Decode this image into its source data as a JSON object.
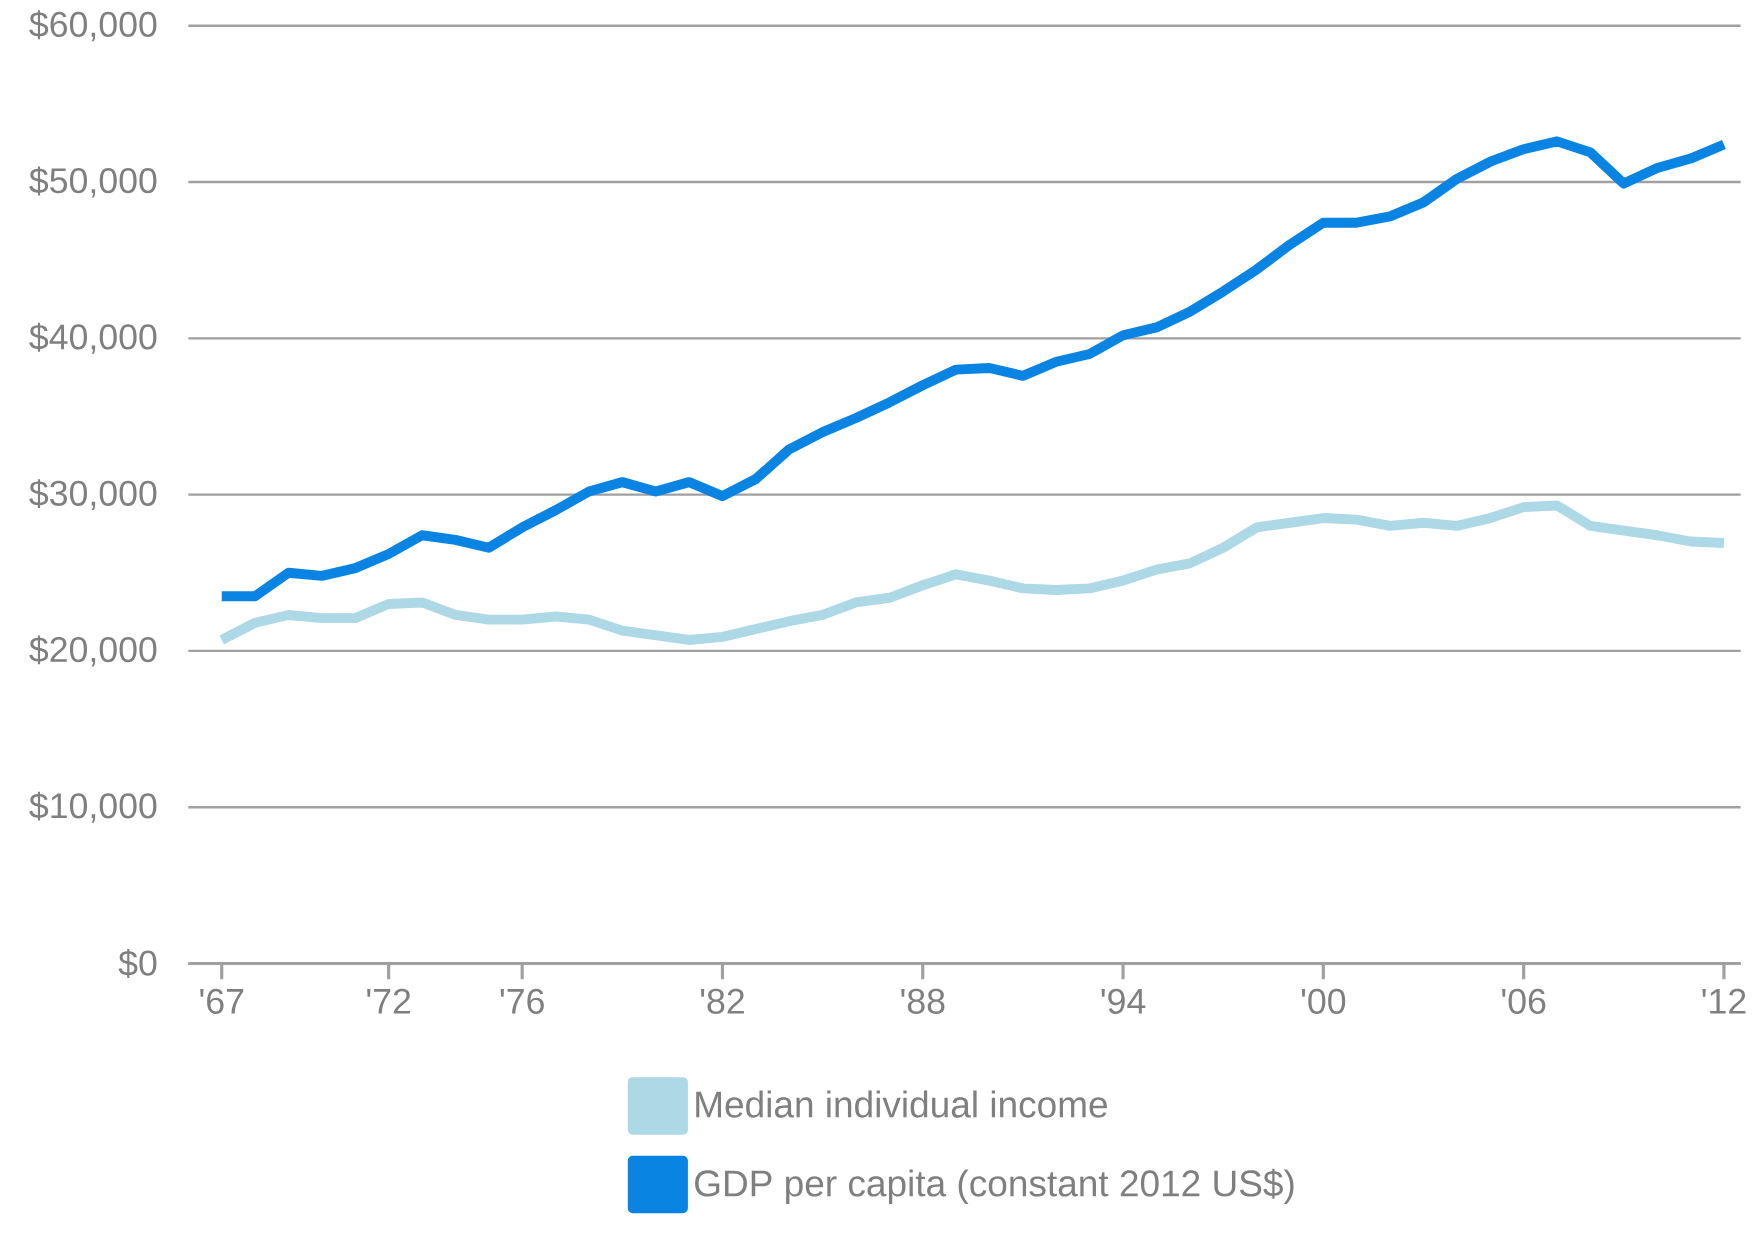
{
  "chart_data": {
    "type": "line",
    "x": [
      1967,
      1968,
      1969,
      1970,
      1971,
      1972,
      1973,
      1974,
      1975,
      1976,
      1977,
      1978,
      1979,
      1980,
      1981,
      1982,
      1983,
      1984,
      1985,
      1986,
      1987,
      1988,
      1989,
      1990,
      1991,
      1992,
      1993,
      1994,
      1995,
      1996,
      1997,
      1998,
      1999,
      2000,
      2001,
      2002,
      2003,
      2004,
      2005,
      2006,
      2007,
      2008,
      2009,
      2010,
      2011,
      2012
    ],
    "series": [
      {
        "name": "Median individual income",
        "color": "#add8e6",
        "values": [
          20700,
          21800,
          22300,
          22100,
          22100,
          23000,
          23100,
          22300,
          22000,
          22000,
          22200,
          22000,
          21300,
          21000,
          20700,
          20900,
          21400,
          21900,
          22300,
          23100,
          23400,
          24200,
          24900,
          24500,
          24000,
          23900,
          24000,
          24500,
          25200,
          25600,
          26600,
          27900,
          28200,
          28500,
          28400,
          28000,
          28200,
          28000,
          28500,
          29200,
          29300,
          28000,
          27700,
          27400,
          27000,
          26900
        ]
      },
      {
        "name": "GDP per capita (constant 2012 US$)",
        "color": "#0a84e3",
        "values": [
          23500,
          23500,
          25000,
          24800,
          25300,
          26200,
          27400,
          27100,
          26600,
          27900,
          29000,
          30200,
          30800,
          30200,
          30800,
          29900,
          31000,
          32900,
          34000,
          34900,
          35900,
          37000,
          38000,
          38100,
          37600,
          38500,
          39000,
          40200,
          40700,
          41700,
          43000,
          44400,
          46000,
          47400,
          47400,
          47800,
          48700,
          50200,
          51300,
          52100,
          52600,
          51900,
          49900,
          50900,
          51500,
          52400
        ]
      }
    ],
    "xlim": [
      1966,
      2012.5
    ],
    "xticks": [
      {
        "value": 1967,
        "label": "'67"
      },
      {
        "value": 1972,
        "label": "'72"
      },
      {
        "value": 1976,
        "label": "'76"
      },
      {
        "value": 1982,
        "label": "'82"
      },
      {
        "value": 1988,
        "label": "'88"
      },
      {
        "value": 1994,
        "label": "'94"
      },
      {
        "value": 2000,
        "label": "'00"
      },
      {
        "value": 2006,
        "label": "'06"
      },
      {
        "value": 2012,
        "label": "'12"
      }
    ],
    "ylim": [
      0,
      60000
    ],
    "yticks": [
      {
        "value": 0,
        "label": "$0"
      },
      {
        "value": 10000,
        "label": "$10,000"
      },
      {
        "value": 20000,
        "label": "$20,000"
      },
      {
        "value": 30000,
        "label": "$30,000"
      },
      {
        "value": 40000,
        "label": "$40,000"
      },
      {
        "value": 50000,
        "label": "$50,000"
      },
      {
        "value": 60000,
        "label": "$60,000"
      }
    ],
    "grid": "y",
    "legend": "bottom",
    "marker": "none",
    "line_style": "solid"
  }
}
